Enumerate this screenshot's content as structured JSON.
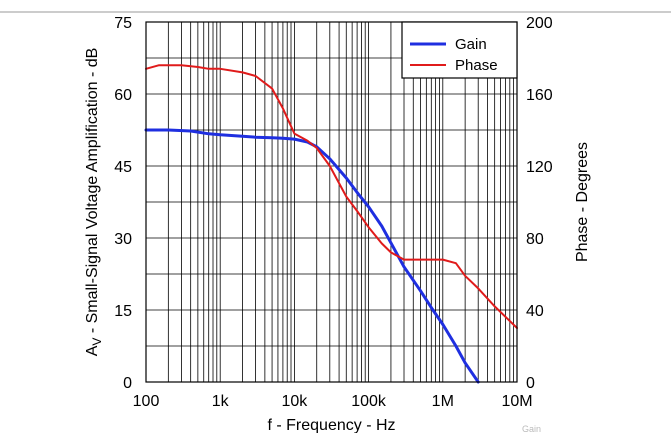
{
  "chart_data": {
    "type": "line",
    "title": "",
    "xlabel": "f - Frequency - Hz",
    "ylabel_left": "A",
    "ylabel_left_sub": "V",
    "ylabel_left_rest": " - Small-Signal Voltage Amplification - dB",
    "ylabel_right": "Phase - Degrees",
    "x_scale": "log",
    "xlim": [
      100,
      10000000
    ],
    "ylim_left": [
      0,
      75
    ],
    "ylim_right": [
      0,
      200
    ],
    "grid": true,
    "legend_position": "top-right",
    "x_tick_labels": [
      "100",
      "1k",
      "10k",
      "100k",
      "1M",
      "10M"
    ],
    "y_left_tick_labels": [
      "0",
      "15",
      "30",
      "45",
      "60",
      "75"
    ],
    "y_right_tick_labels": [
      "0",
      "40",
      "80",
      "120",
      "160",
      "200"
    ],
    "watermark": "Gain",
    "series": [
      {
        "name": "Gain",
        "axis": "left",
        "color": "#1f2fe0",
        "x": [
          100,
          200,
          400,
          700,
          1000,
          2000,
          3000,
          5000,
          7000,
          10000,
          15000,
          20000,
          30000,
          50000,
          70000,
          100000,
          150000,
          200000,
          300000,
          500000,
          700000,
          1000000,
          1500000,
          2000000,
          3000000
        ],
        "y": [
          52.5,
          52.5,
          52.3,
          51.7,
          51.5,
          51.2,
          51.0,
          50.9,
          50.8,
          50.6,
          50.0,
          49.0,
          46.5,
          42.5,
          39.5,
          36.5,
          32.5,
          29.0,
          24.0,
          19.0,
          15.5,
          12.0,
          7.5,
          4.0,
          0.0
        ]
      },
      {
        "name": "Phase",
        "axis": "right",
        "color": "#e01b1b",
        "x": [
          100,
          150,
          200,
          300,
          500,
          700,
          1000,
          2000,
          3000,
          5000,
          7000,
          10000,
          15000,
          20000,
          30000,
          50000,
          70000,
          100000,
          150000,
          200000,
          300000,
          500000,
          700000,
          1000000,
          1500000,
          2000000,
          3000000,
          5000000,
          10000000
        ],
        "y": [
          174,
          176,
          176,
          176,
          175,
          174,
          174,
          172,
          170,
          163,
          152,
          138,
          134,
          130,
          120,
          103,
          95,
          86,
          77,
          72,
          68,
          68,
          68,
          68,
          66,
          59,
          52,
          42,
          30
        ]
      }
    ]
  }
}
